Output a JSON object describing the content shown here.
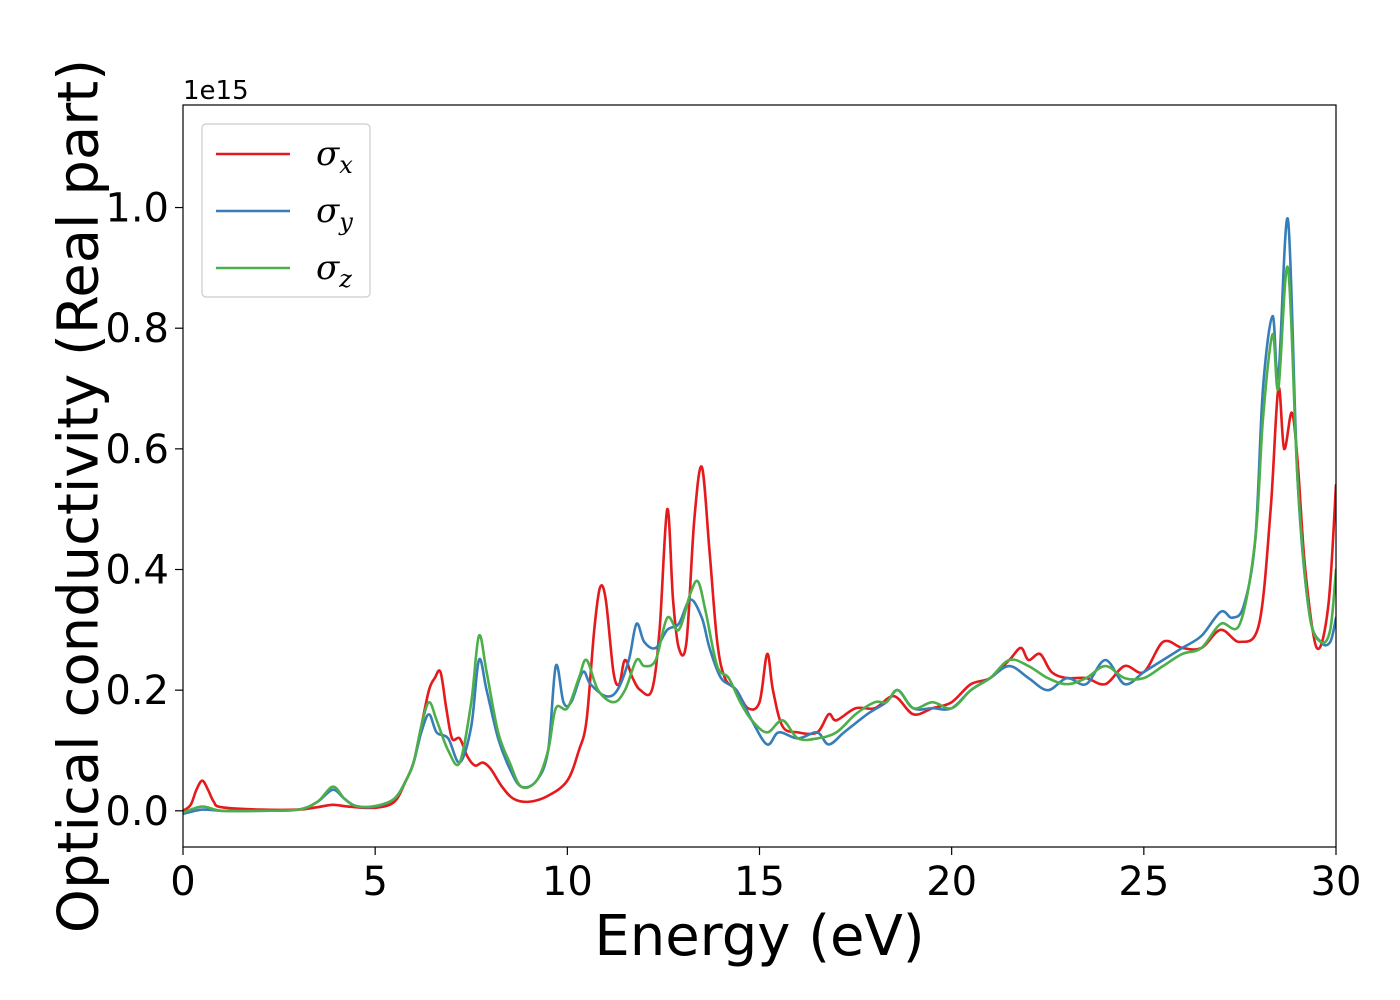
{
  "chart_data": {
    "type": "line",
    "title": "",
    "xlabel": "Energy (eV)",
    "ylabel": "Optical conductivity (Real part)",
    "y_offset_label": "1e15",
    "xlim": [
      0,
      30
    ],
    "ylim": [
      -0.06,
      1.17
    ],
    "x_ticks": [
      0,
      5,
      10,
      15,
      20,
      25,
      30
    ],
    "x_tick_labels": [
      "0",
      "5",
      "10",
      "15",
      "20",
      "25",
      "30"
    ],
    "y_ticks": [
      0.0,
      0.2,
      0.4,
      0.6,
      0.8,
      1.0
    ],
    "y_tick_labels": [
      "0.0",
      "0.2",
      "0.4",
      "0.6",
      "0.8",
      "1.0"
    ],
    "grid": false,
    "legend": {
      "placement": "top-left",
      "entries": [
        "σ_x",
        "σ_y",
        "σ_z"
      ]
    },
    "series": [
      {
        "name": "σ_x",
        "label_base": "σ",
        "label_sub": "x",
        "color": "#e41a1c",
        "points": [
          [
            0,
            0.0
          ],
          [
            0.2,
            0.01
          ],
          [
            0.35,
            0.035
          ],
          [
            0.5,
            0.05
          ],
          [
            0.65,
            0.035
          ],
          [
            0.8,
            0.015
          ],
          [
            1.0,
            0.006
          ],
          [
            2,
            0.002
          ],
          [
            3,
            0.002
          ],
          [
            3.5,
            0.006
          ],
          [
            3.9,
            0.01
          ],
          [
            4.3,
            0.007
          ],
          [
            5,
            0.005
          ],
          [
            5.5,
            0.015
          ],
          [
            5.8,
            0.05
          ],
          [
            6.0,
            0.08
          ],
          [
            6.2,
            0.14
          ],
          [
            6.4,
            0.2
          ],
          [
            6.55,
            0.22
          ],
          [
            6.7,
            0.23
          ],
          [
            6.85,
            0.17
          ],
          [
            7.0,
            0.12
          ],
          [
            7.2,
            0.12
          ],
          [
            7.4,
            0.09
          ],
          [
            7.6,
            0.075
          ],
          [
            7.8,
            0.08
          ],
          [
            8.0,
            0.07
          ],
          [
            8.3,
            0.04
          ],
          [
            8.6,
            0.02
          ],
          [
            9.0,
            0.015
          ],
          [
            9.5,
            0.025
          ],
          [
            10.0,
            0.05
          ],
          [
            10.3,
            0.1
          ],
          [
            10.5,
            0.15
          ],
          [
            10.7,
            0.3
          ],
          [
            10.85,
            0.37
          ],
          [
            11.0,
            0.35
          ],
          [
            11.2,
            0.23
          ],
          [
            11.35,
            0.21
          ],
          [
            11.5,
            0.25
          ],
          [
            11.7,
            0.22
          ],
          [
            11.9,
            0.2
          ],
          [
            12.2,
            0.2
          ],
          [
            12.4,
            0.3
          ],
          [
            12.6,
            0.5
          ],
          [
            12.75,
            0.35
          ],
          [
            12.9,
            0.27
          ],
          [
            13.1,
            0.28
          ],
          [
            13.3,
            0.48
          ],
          [
            13.5,
            0.57
          ],
          [
            13.7,
            0.43
          ],
          [
            13.9,
            0.28
          ],
          [
            14.1,
            0.22
          ],
          [
            14.4,
            0.2
          ],
          [
            14.7,
            0.17
          ],
          [
            15.0,
            0.18
          ],
          [
            15.2,
            0.26
          ],
          [
            15.35,
            0.2
          ],
          [
            15.6,
            0.14
          ],
          [
            16.0,
            0.13
          ],
          [
            16.5,
            0.13
          ],
          [
            16.8,
            0.16
          ],
          [
            17.0,
            0.15
          ],
          [
            17.5,
            0.17
          ],
          [
            18.0,
            0.17
          ],
          [
            18.5,
            0.19
          ],
          [
            19.0,
            0.16
          ],
          [
            19.5,
            0.17
          ],
          [
            20.0,
            0.18
          ],
          [
            20.5,
            0.21
          ],
          [
            21.0,
            0.22
          ],
          [
            21.5,
            0.25
          ],
          [
            21.8,
            0.27
          ],
          [
            22.0,
            0.25
          ],
          [
            22.3,
            0.26
          ],
          [
            22.6,
            0.23
          ],
          [
            23.0,
            0.22
          ],
          [
            23.5,
            0.22
          ],
          [
            24.0,
            0.21
          ],
          [
            24.5,
            0.24
          ],
          [
            25.0,
            0.23
          ],
          [
            25.5,
            0.28
          ],
          [
            26.0,
            0.27
          ],
          [
            26.5,
            0.27
          ],
          [
            27.0,
            0.3
          ],
          [
            27.5,
            0.28
          ],
          [
            28.0,
            0.31
          ],
          [
            28.3,
            0.5
          ],
          [
            28.5,
            0.7
          ],
          [
            28.65,
            0.6
          ],
          [
            28.85,
            0.66
          ],
          [
            29.0,
            0.58
          ],
          [
            29.2,
            0.4
          ],
          [
            29.5,
            0.27
          ],
          [
            29.8,
            0.34
          ],
          [
            30.0,
            0.54
          ]
        ]
      },
      {
        "name": "σ_y",
        "label_base": "σ",
        "label_sub": "y",
        "color": "#377eb8",
        "points": [
          [
            0,
            -0.005
          ],
          [
            0.5,
            0.002
          ],
          [
            1,
            0.0
          ],
          [
            2,
            0.0
          ],
          [
            3,
            0.002
          ],
          [
            3.5,
            0.015
          ],
          [
            3.9,
            0.035
          ],
          [
            4.2,
            0.02
          ],
          [
            4.5,
            0.008
          ],
          [
            5,
            0.007
          ],
          [
            5.5,
            0.02
          ],
          [
            5.8,
            0.05
          ],
          [
            6.0,
            0.08
          ],
          [
            6.2,
            0.13
          ],
          [
            6.4,
            0.16
          ],
          [
            6.6,
            0.13
          ],
          [
            6.9,
            0.12
          ],
          [
            7.2,
            0.08
          ],
          [
            7.5,
            0.14
          ],
          [
            7.7,
            0.25
          ],
          [
            7.9,
            0.2
          ],
          [
            8.2,
            0.12
          ],
          [
            8.5,
            0.07
          ],
          [
            8.8,
            0.04
          ],
          [
            9.2,
            0.05
          ],
          [
            9.5,
            0.1
          ],
          [
            9.7,
            0.24
          ],
          [
            9.9,
            0.18
          ],
          [
            10.1,
            0.18
          ],
          [
            10.4,
            0.23
          ],
          [
            10.6,
            0.21
          ],
          [
            11.0,
            0.19
          ],
          [
            11.3,
            0.2
          ],
          [
            11.6,
            0.25
          ],
          [
            11.8,
            0.31
          ],
          [
            12.0,
            0.28
          ],
          [
            12.3,
            0.27
          ],
          [
            12.6,
            0.3
          ],
          [
            12.9,
            0.31
          ],
          [
            13.2,
            0.35
          ],
          [
            13.5,
            0.32
          ],
          [
            13.7,
            0.27
          ],
          [
            14.0,
            0.22
          ],
          [
            14.4,
            0.2
          ],
          [
            14.8,
            0.15
          ],
          [
            15.2,
            0.11
          ],
          [
            15.5,
            0.13
          ],
          [
            16.0,
            0.12
          ],
          [
            16.5,
            0.13
          ],
          [
            16.8,
            0.11
          ],
          [
            17.2,
            0.13
          ],
          [
            17.8,
            0.16
          ],
          [
            18.3,
            0.18
          ],
          [
            18.6,
            0.2
          ],
          [
            19.0,
            0.17
          ],
          [
            19.5,
            0.17
          ],
          [
            20.0,
            0.17
          ],
          [
            20.5,
            0.2
          ],
          [
            21.0,
            0.22
          ],
          [
            21.5,
            0.24
          ],
          [
            22.0,
            0.22
          ],
          [
            22.5,
            0.2
          ],
          [
            23.0,
            0.22
          ],
          [
            23.5,
            0.21
          ],
          [
            24.0,
            0.25
          ],
          [
            24.5,
            0.21
          ],
          [
            25.0,
            0.23
          ],
          [
            25.5,
            0.25
          ],
          [
            26.0,
            0.27
          ],
          [
            26.5,
            0.29
          ],
          [
            27.0,
            0.33
          ],
          [
            27.3,
            0.32
          ],
          [
            27.6,
            0.34
          ],
          [
            27.9,
            0.45
          ],
          [
            28.1,
            0.7
          ],
          [
            28.35,
            0.82
          ],
          [
            28.5,
            0.72
          ],
          [
            28.75,
            0.98
          ],
          [
            29.0,
            0.55
          ],
          [
            29.3,
            0.33
          ],
          [
            29.6,
            0.28
          ],
          [
            29.85,
            0.28
          ],
          [
            30.0,
            0.32
          ]
        ]
      },
      {
        "name": "σ_z",
        "label_base": "σ",
        "label_sub": "z",
        "color": "#4daf4a",
        "points": [
          [
            0,
            -0.003
          ],
          [
            0.5,
            0.007
          ],
          [
            1,
            0.0
          ],
          [
            2,
            0.0
          ],
          [
            3,
            0.002
          ],
          [
            3.5,
            0.015
          ],
          [
            3.9,
            0.04
          ],
          [
            4.2,
            0.02
          ],
          [
            4.5,
            0.008
          ],
          [
            5,
            0.008
          ],
          [
            5.5,
            0.02
          ],
          [
            5.8,
            0.05
          ],
          [
            6.0,
            0.08
          ],
          [
            6.2,
            0.14
          ],
          [
            6.4,
            0.18
          ],
          [
            6.6,
            0.15
          ],
          [
            6.9,
            0.1
          ],
          [
            7.2,
            0.08
          ],
          [
            7.5,
            0.18
          ],
          [
            7.7,
            0.29
          ],
          [
            7.9,
            0.23
          ],
          [
            8.2,
            0.13
          ],
          [
            8.5,
            0.08
          ],
          [
            8.8,
            0.04
          ],
          [
            9.2,
            0.05
          ],
          [
            9.5,
            0.1
          ],
          [
            9.7,
            0.17
          ],
          [
            10.0,
            0.17
          ],
          [
            10.3,
            0.22
          ],
          [
            10.5,
            0.25
          ],
          [
            10.8,
            0.2
          ],
          [
            11.2,
            0.18
          ],
          [
            11.5,
            0.2
          ],
          [
            11.8,
            0.25
          ],
          [
            12.0,
            0.24
          ],
          [
            12.3,
            0.25
          ],
          [
            12.6,
            0.32
          ],
          [
            12.9,
            0.3
          ],
          [
            13.2,
            0.36
          ],
          [
            13.4,
            0.38
          ],
          [
            13.6,
            0.33
          ],
          [
            13.9,
            0.24
          ],
          [
            14.2,
            0.22
          ],
          [
            14.5,
            0.18
          ],
          [
            14.8,
            0.15
          ],
          [
            15.2,
            0.13
          ],
          [
            15.6,
            0.15
          ],
          [
            16.0,
            0.12
          ],
          [
            16.5,
            0.12
          ],
          [
            17.0,
            0.13
          ],
          [
            17.5,
            0.16
          ],
          [
            18.0,
            0.18
          ],
          [
            18.3,
            0.18
          ],
          [
            18.6,
            0.2
          ],
          [
            19.0,
            0.17
          ],
          [
            19.5,
            0.18
          ],
          [
            20.0,
            0.17
          ],
          [
            20.5,
            0.2
          ],
          [
            21.0,
            0.22
          ],
          [
            21.5,
            0.25
          ],
          [
            22.0,
            0.24
          ],
          [
            22.5,
            0.22
          ],
          [
            23.0,
            0.21
          ],
          [
            23.5,
            0.22
          ],
          [
            24.0,
            0.24
          ],
          [
            24.5,
            0.22
          ],
          [
            25.0,
            0.22
          ],
          [
            25.5,
            0.24
          ],
          [
            26.0,
            0.26
          ],
          [
            26.5,
            0.27
          ],
          [
            27.0,
            0.31
          ],
          [
            27.5,
            0.31
          ],
          [
            27.9,
            0.45
          ],
          [
            28.1,
            0.65
          ],
          [
            28.35,
            0.79
          ],
          [
            28.5,
            0.7
          ],
          [
            28.75,
            0.9
          ],
          [
            29.0,
            0.55
          ],
          [
            29.3,
            0.33
          ],
          [
            29.6,
            0.28
          ],
          [
            29.85,
            0.3
          ],
          [
            30.0,
            0.4
          ]
        ]
      }
    ]
  }
}
